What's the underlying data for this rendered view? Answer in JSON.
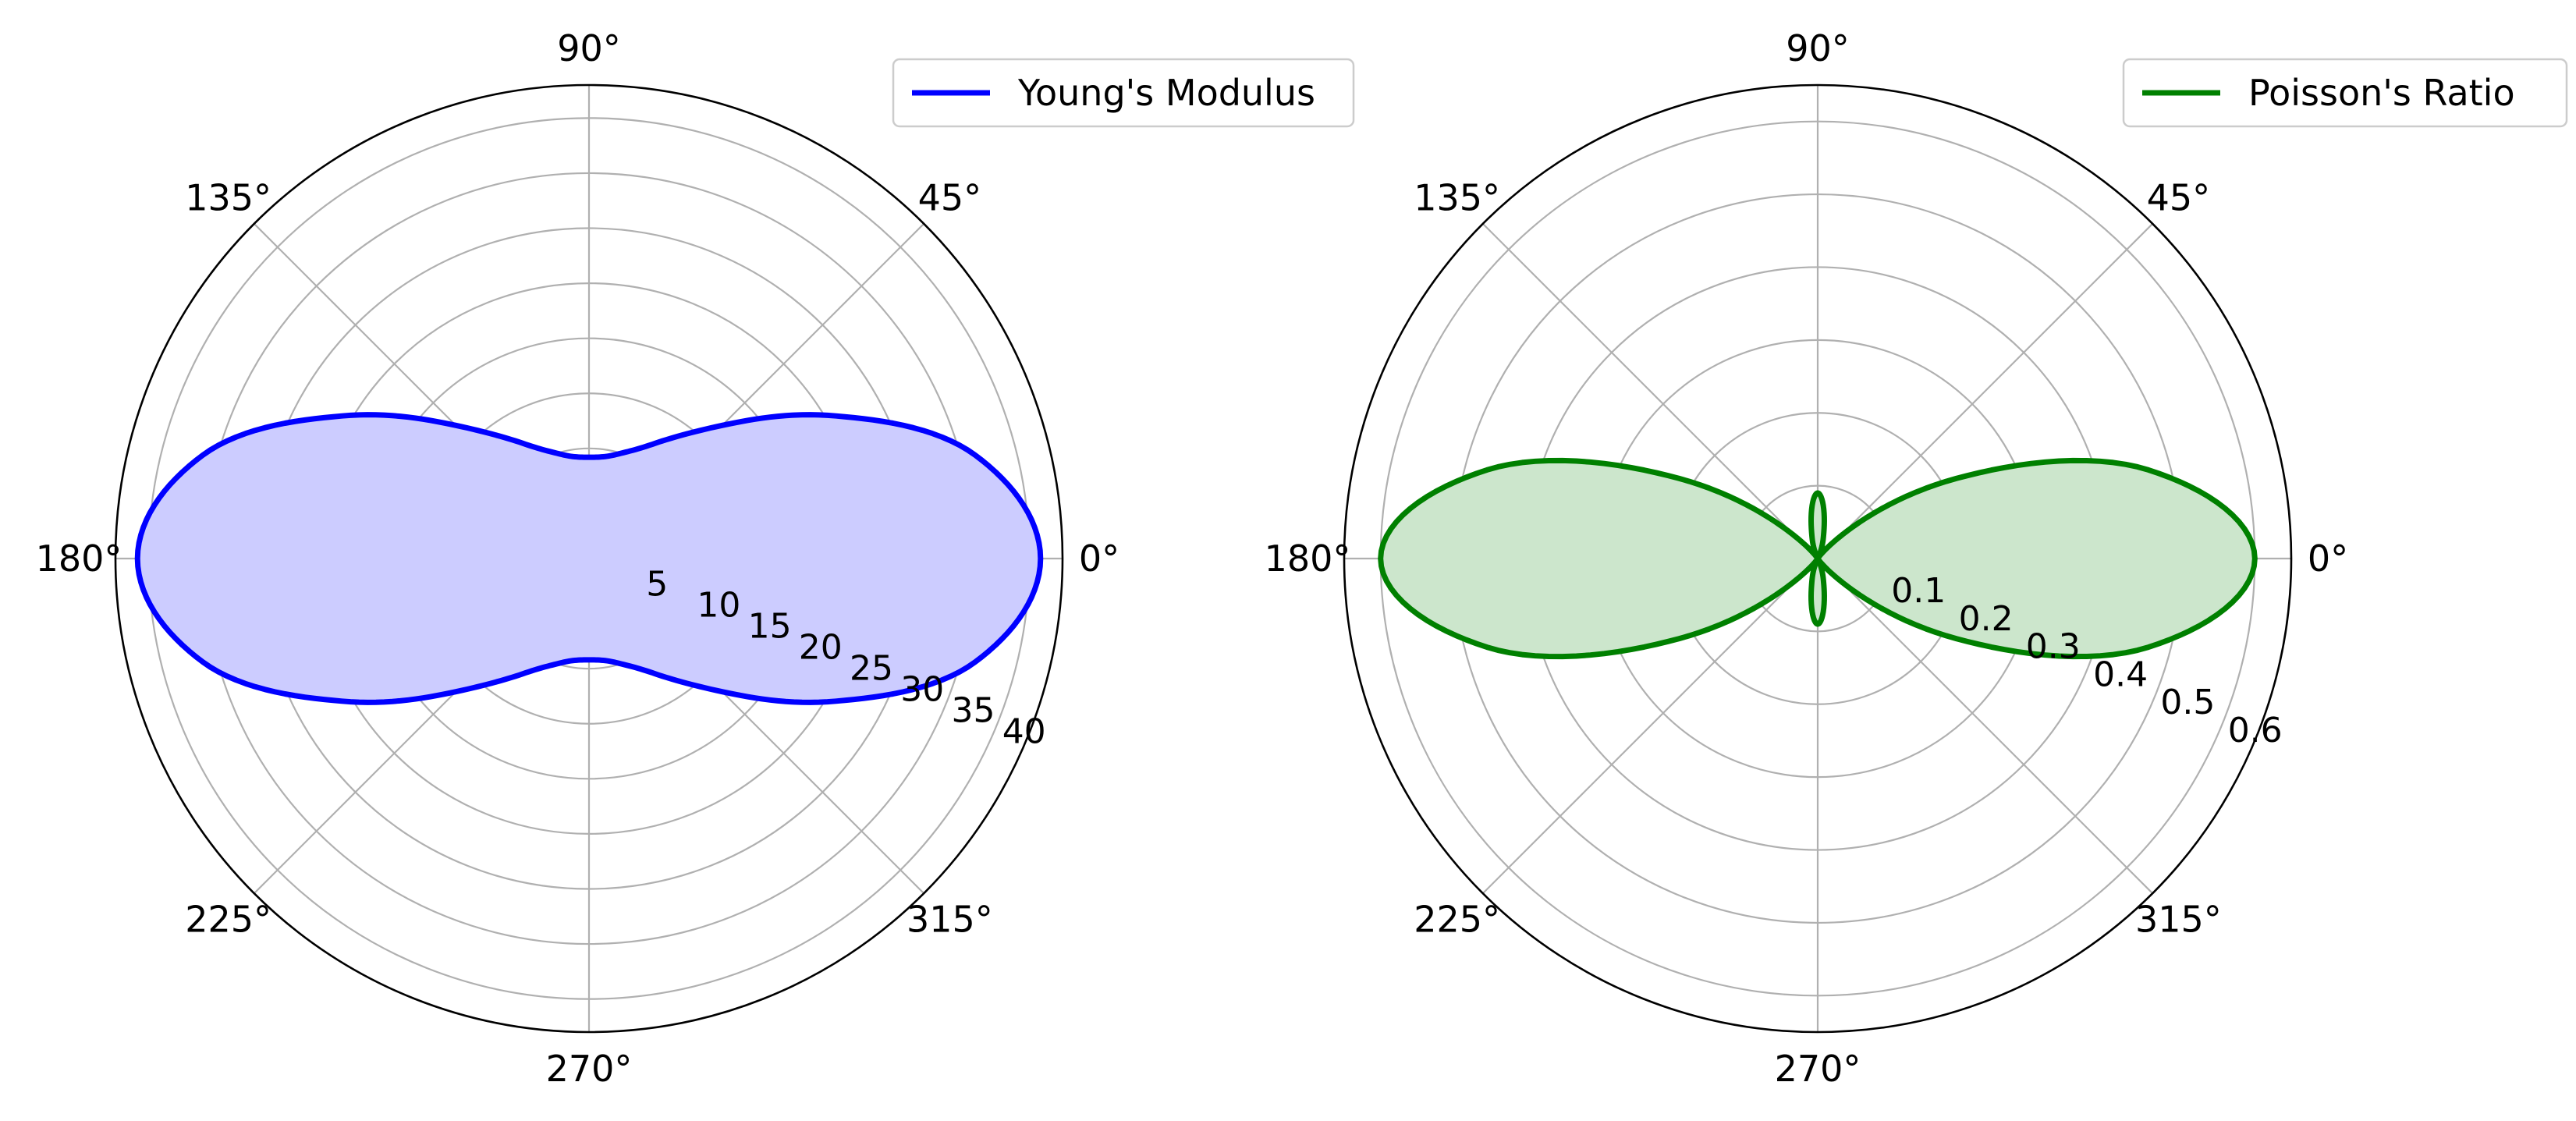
{
  "chart_data": [
    {
      "type": "polar",
      "angle_tick_labels": [
        "0°",
        "45°",
        "90°",
        "135°",
        "180°",
        "225°",
        "270°",
        "315°"
      ],
      "radial_tick_labels": [
        "5",
        "10",
        "15",
        "20",
        "25",
        "30",
        "35",
        "40"
      ],
      "rlim": [
        0,
        43
      ],
      "grid": true,
      "legend_position": "top-right",
      "series": [
        {
          "name": "Young's Modulus",
          "color": "#0000ff",
          "fill_color": "#ccccff",
          "theta_deg": [
            0,
            15,
            30,
            45,
            60,
            75,
            90,
            105,
            120,
            135,
            150,
            165,
            180,
            195,
            210,
            225,
            240,
            255,
            270,
            285,
            300,
            315,
            330,
            345
          ],
          "r": [
            41.0,
            36.3,
            25.9,
            17.1,
            12.1,
            9.8,
            9.2,
            9.8,
            12.1,
            17.1,
            25.9,
            36.3,
            41.0,
            36.3,
            25.9,
            17.1,
            12.1,
            9.8,
            9.2,
            9.8,
            12.1,
            17.1,
            25.9,
            36.3
          ]
        }
      ]
    },
    {
      "type": "polar",
      "angle_tick_labels": [
        "0°",
        "45°",
        "90°",
        "135°",
        "180°",
        "225°",
        "270°",
        "315°"
      ],
      "radial_tick_labels": [
        "0.1",
        "0.2",
        "0.3",
        "0.4",
        "0.5",
        "0.6"
      ],
      "rlim": [
        0,
        0.65
      ],
      "grid": true,
      "legend_position": "top-right",
      "series": [
        {
          "name": "Poisson's Ratio",
          "color": "#008000",
          "fill_color": "#cce6cc",
          "theta_deg": [
            0,
            15,
            30,
            45,
            60,
            75,
            90,
            105,
            120,
            135,
            150,
            165,
            180,
            195,
            210,
            225,
            240,
            255,
            270,
            285,
            300,
            315,
            330,
            345
          ],
          "r": [
            0.6,
            0.47,
            0.22,
            0.04,
            0.0,
            0.03,
            0.09,
            0.03,
            0.0,
            0.04,
            0.22,
            0.47,
            0.6,
            0.47,
            0.22,
            0.04,
            0.0,
            0.03,
            0.09,
            0.03,
            0.0,
            0.04,
            0.22,
            0.47
          ]
        }
      ]
    }
  ]
}
